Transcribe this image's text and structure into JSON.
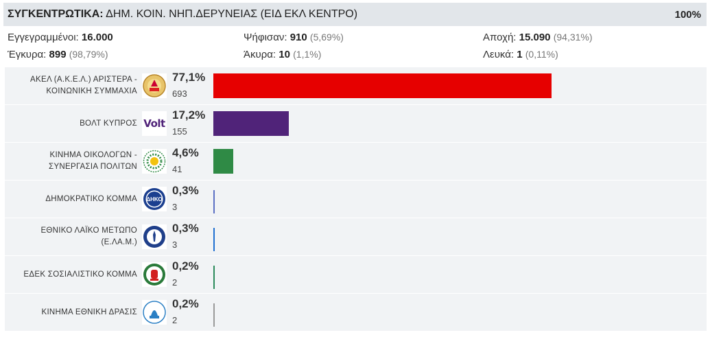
{
  "header": {
    "title_bold": "ΣΥΓΚΕΝΤΡΩΤΙΚΑ:",
    "title_rest": "ΔΗΜ. ΚΟΙΝ. ΝΗΠ.ΔΕΡΥΝΕΙΑΣ (ΕΙΔ ΕΚΛ ΚΕΝΤΡΟ)",
    "percent_counted": "100%"
  },
  "stats": {
    "registered": {
      "label": "Εγγεγραμμένοι:",
      "value": "16.000"
    },
    "voted": {
      "label": "Ψήφισαν:",
      "value": "910",
      "sub": "(5,69%)"
    },
    "abstention": {
      "label": "Αποχή:",
      "value": "15.090",
      "sub": "(94,31%)"
    },
    "valid": {
      "label": "Έγκυρα:",
      "value": "899",
      "sub": "(98,79%)"
    },
    "invalid": {
      "label": "Άκυρα:",
      "value": "10",
      "sub": "(1,1%)"
    },
    "blank": {
      "label": "Λευκά:",
      "value": "1",
      "sub": "(0,11%)"
    }
  },
  "chart_data": {
    "type": "bar",
    "orientation": "horizontal",
    "max_percent": 100,
    "categories": [
      "ΑΚΕΛ (Α.Κ.Ε.Λ.) ΑΡΙΣΤΕΡΑ - ΚΟΙΝΩΝΙΚΗ ΣΥΜΜΑΧΙΑ",
      "ΒΟΛΤ ΚΥΠΡΟΣ",
      "ΚΙΝΗΜΑ ΟΙΚΟΛΟΓΩΝ - ΣΥΝΕΡΓΑΣΙΑ ΠΟΛΙΤΩΝ",
      "ΔΗΜΟΚΡΑΤΙΚΟ ΚΟΜΜΑ",
      "ΕΘΝΙΚΟ ΛΑΪΚΟ ΜΕΤΩΠΟ (Ε.ΛΑ.Μ.)",
      "ΕΔΕΚ ΣΟΣΙΑΛΙΣΤΙΚΟ ΚΟΜΜΑ",
      "ΚΙΝΗΜΑ ΕΘΝΙΚΗ ΔΡΑΣΙΣ"
    ],
    "parties": [
      {
        "name_lines": [
          "ΑΚΕΛ (Α.Κ.Ε.Λ.) ΑΡΙΣΤΕΡΑ -",
          "ΚΟΙΝΩΝΙΚΗ ΣΥΜΜΑΧΙΑ"
        ],
        "percent": 77.1,
        "percent_label": "77,1%",
        "votes": "693",
        "color": "#e60000",
        "logo": "akel-logo-icon"
      },
      {
        "name_lines": [
          "ΒΟΛΤ ΚΥΠΡΟΣ"
        ],
        "percent": 17.2,
        "percent_label": "17,2%",
        "votes": "155",
        "color": "#502379",
        "logo": "volt-logo-icon",
        "logo_text": "Volt"
      },
      {
        "name_lines": [
          "ΚΙΝΗΜΑ ΟΙΚΟΛΟΓΩΝ -",
          "ΣΥΝΕΡΓΑΣΙΑ ΠΟΛΙΤΩΝ"
        ],
        "percent": 4.6,
        "percent_label": "4,6%",
        "votes": "41",
        "color": "#2f8a45",
        "logo": "ecologists-logo-icon"
      },
      {
        "name_lines": [
          "ΔΗΜΟΚΡΑΤΙΚΟ ΚΟΜΜΑ"
        ],
        "percent": 0.3,
        "percent_label": "0,3%",
        "votes": "3",
        "color": "#5b6fc4",
        "logo": "diko-logo-icon"
      },
      {
        "name_lines": [
          "ΕΘΝΙΚΟ ΛΑΪΚΟ ΜΕΤΩΠΟ",
          "(Ε.ΛΑ.Μ.)"
        ],
        "percent": 0.3,
        "percent_label": "0,3%",
        "votes": "3",
        "color": "#1f6fd1",
        "logo": "elam-logo-icon"
      },
      {
        "name_lines": [
          "ΕΔΕΚ ΣΟΣΙΑΛΙΣΤΙΚΟ ΚΟΜΜΑ"
        ],
        "percent": 0.2,
        "percent_label": "0,2%",
        "votes": "2",
        "color": "#2a8a5a",
        "logo": "edek-logo-icon"
      },
      {
        "name_lines": [
          "ΚΙΝΗΜΑ ΕΘΝΙΚΗ ΔΡΑΣΙΣ"
        ],
        "percent": 0.2,
        "percent_label": "0,2%",
        "votes": "2",
        "color": "#999999",
        "logo": "national-action-logo-icon"
      }
    ]
  }
}
